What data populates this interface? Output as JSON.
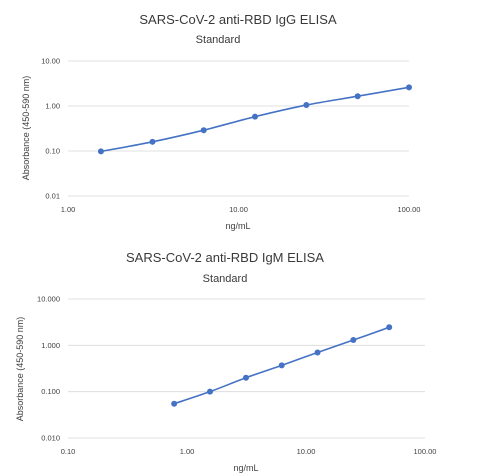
{
  "chart_data": [
    {
      "type": "scatter",
      "title": "SARS-CoV-2 anti-RBD IgG ELISA",
      "subtitle": "Standard",
      "xlabel": "ng/mL",
      "ylabel": "Absorbance (450-590 nm)",
      "x_scale": "log",
      "y_scale": "log",
      "xlim": [
        1,
        100
      ],
      "ylim": [
        0.01,
        10
      ],
      "x_ticks": [
        "1.00",
        "10.00",
        "100.00"
      ],
      "y_ticks": [
        "10.00",
        "1.00",
        "0.10",
        "0.01"
      ],
      "grid": true,
      "trendline": true,
      "x": [
        1.56,
        3.13,
        6.25,
        12.5,
        25,
        50,
        100
      ],
      "y": [
        0.098,
        0.16,
        0.29,
        0.58,
        1.05,
        1.65,
        2.6
      ]
    },
    {
      "type": "scatter",
      "title": "SARS-CoV-2 anti-RBD IgM ELISA",
      "subtitle": "Standard",
      "xlabel": "ng/mL",
      "ylabel": "Absorbance (450-590 nm)",
      "x_scale": "log",
      "y_scale": "log",
      "xlim": [
        0.1,
        100
      ],
      "ylim": [
        0.01,
        10
      ],
      "x_ticks": [
        "0.10",
        "1.00",
        "10.00",
        "100.00"
      ],
      "y_ticks": [
        "10.000",
        "1.000",
        "0.100",
        "0.010"
      ],
      "grid": true,
      "trendline": true,
      "x": [
        0.78,
        1.56,
        3.13,
        6.25,
        12.5,
        25,
        50
      ],
      "y": [
        0.055,
        0.1,
        0.2,
        0.37,
        0.7,
        1.3,
        2.45
      ]
    }
  ]
}
